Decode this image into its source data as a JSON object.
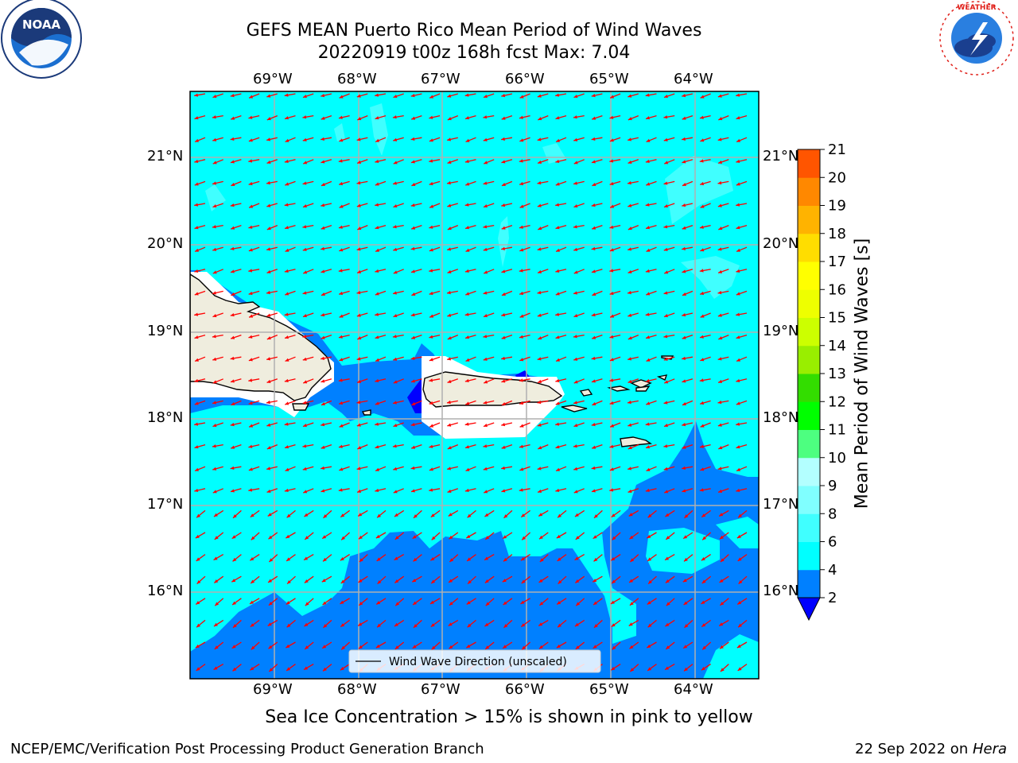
{
  "header": {
    "title_line1": "GEFS MEAN Puerto Rico Mean Period of Wind Waves",
    "title_line2": "20220919 t00z 168h fcst   Max: 7.04"
  },
  "logos": {
    "noaa_text": "NOAA",
    "noaa_ring": "NATIONAL OCEANIC AND ATMOSPHERIC ADMINISTRATION · U.S. DEPARTMENT OF COMMERCE",
    "nws_ring": "NATIONAL WEATHER SERVICE"
  },
  "map": {
    "lon_labels": [
      "69°W",
      "68°W",
      "67°W",
      "66°W",
      "65°W",
      "64°W"
    ],
    "lat_labels": [
      "21°N",
      "20°N",
      "19°N",
      "18°N",
      "17°N",
      "16°N"
    ],
    "legend_label": "Wind Wave Direction (unscaled)",
    "colors": {
      "ocean_4_6": "#00ffff",
      "ocean_2_4": "#0080ff",
      "ocean_lt2": "#0000ff",
      "ocean_6_8": "#40ffff",
      "land": "#efedde",
      "arrow": "#ff0000"
    }
  },
  "colorbar": {
    "label": "Mean Period of Wind Waves [s]",
    "ticks": [
      "2",
      "4",
      "6",
      "8",
      "9",
      "10",
      "11",
      "12",
      "13",
      "14",
      "15",
      "16",
      "17",
      "18",
      "19",
      "20",
      "21"
    ],
    "colors": [
      "#0080ff",
      "#00ffff",
      "#40ffff",
      "#80ffff",
      "#b3ffff",
      "#4dff80",
      "#00ff00",
      "#33dd00",
      "#99ee00",
      "#ccff00",
      "#eeff00",
      "#ffff00",
      "#ffdd00",
      "#ffb300",
      "#ff8800",
      "#ff5500",
      "#ff2200",
      "#ff0000"
    ],
    "under_color": "#0000ff"
  },
  "notes": {
    "sea_ice": "Sea Ice Concentration > 15% is shown in pink to yellow"
  },
  "footer": {
    "left": "NCEP/EMC/Verification Post Processing Product Generation Branch",
    "date": "22 Sep 2022 on ",
    "machine": "Hera"
  }
}
